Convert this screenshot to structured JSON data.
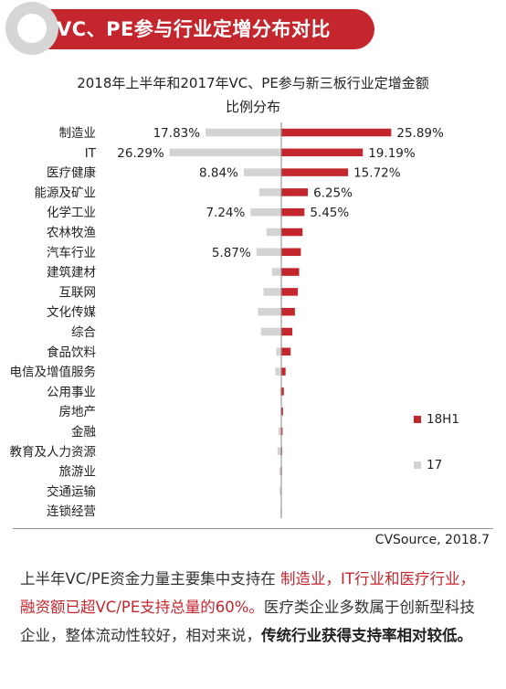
{
  "header": {
    "title": "VC、PE参与行业定增分布对比"
  },
  "chart_data": {
    "type": "bar",
    "title_lines": [
      "2018年上半年和2017年VC、PE参与新三板行业定增金额",
      "比例分布"
    ],
    "categories": [
      "制造业",
      "IT",
      "医疗健康",
      "能源及矿业",
      "化学工业",
      "农林牧渔",
      "汽车行业",
      "建筑建材",
      "互联网",
      "文化传媒",
      "综合",
      "食品饮料",
      "电信及增值服务",
      "公用事业",
      "房地产",
      "金融",
      "教育及人力资源",
      "旅游业",
      "交通运输",
      "连锁经营"
    ],
    "series": [
      {
        "name": "18H1",
        "color": "#c4262e",
        "values": [
          25.89,
          19.19,
          15.72,
          6.25,
          5.45,
          5.0,
          4.6,
          4.2,
          3.9,
          3.2,
          2.6,
          2.2,
          1.0,
          0.6,
          0.4,
          0.3,
          0.2,
          0.15,
          0.1,
          0.05
        ],
        "labels": [
          "25.89%",
          "19.19%",
          "15.72%",
          "6.25%",
          "5.45%",
          "",
          "",
          "",
          "",
          "",
          "",
          "",
          "",
          "",
          "",
          "",
          "",
          "",
          "",
          ""
        ]
      },
      {
        "name": "17",
        "color": "#d3d3d3",
        "values": [
          17.83,
          26.29,
          8.84,
          5.2,
          7.24,
          3.5,
          5.87,
          2.2,
          4.2,
          5.5,
          4.8,
          1.2,
          1.4,
          0.3,
          0.2,
          0.7,
          0.9,
          0.5,
          0.4,
          0.2
        ],
        "labels": [
          "17.83%",
          "26.29%",
          "8.84%",
          "",
          "7.24%",
          "",
          "5.87%",
          "",
          "",
          "",
          "",
          "",
          "",
          "",
          "",
          "",
          "",
          "",
          "",
          ""
        ]
      }
    ],
    "legend_position": "right",
    "grid": false
  },
  "source": "CVSource, 2018.7",
  "summary": {
    "p1": "上半年VC/PE资金力量主要集中支持在 ",
    "p2": "制造业，IT行业和医疗行业，融资额已超VC/PE支持总量的60%。",
    "p3": "医疗类企业多数属于创新型科技企业，整体流动性较好，相对来说，",
    "p4": "传统行业获得支持率相对较低。"
  }
}
